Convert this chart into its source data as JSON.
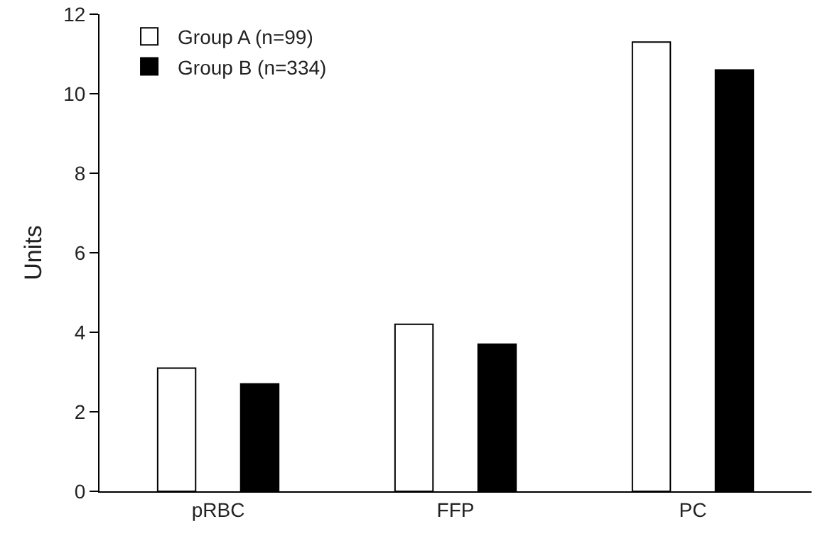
{
  "chart_data": {
    "type": "bar",
    "ylabel": "Units",
    "categories": [
      "pRBC",
      "FFP",
      "PC"
    ],
    "series": [
      {
        "name": "Group A (n=99)",
        "color": "#ffffff",
        "values": [
          3.1,
          4.2,
          11.3
        ]
      },
      {
        "name": "Group B (n=334)",
        "color": "#000000",
        "values": [
          2.7,
          3.7,
          10.6
        ]
      }
    ],
    "ylim": [
      0,
      12
    ],
    "yticks": [
      0,
      2,
      4,
      6,
      8,
      10,
      12
    ],
    "grid": false,
    "legend": "top left"
  }
}
